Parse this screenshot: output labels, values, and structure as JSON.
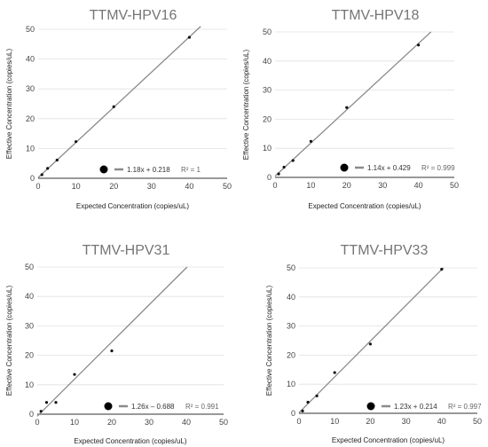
{
  "chart_data": [
    {
      "type": "scatter",
      "title": "TTMV-HPV16",
      "xlabel": "Expected Concentration (copies/uL)",
      "ylabel": "Effective Concentration (copies/uL)",
      "xlim": [
        0,
        50
      ],
      "ylim": [
        0,
        50
      ],
      "xticks": [
        "0",
        "10",
        "20",
        "30",
        "40",
        "50"
      ],
      "yticks": [
        "0",
        "10",
        "20",
        "30",
        "40",
        "50"
      ],
      "x": [
        1,
        2.5,
        5,
        10,
        20,
        40
      ],
      "y": [
        1.2,
        3.3,
        6.1,
        12.3,
        24,
        47.3
      ],
      "trendline": {
        "slope": 1.18,
        "intercept": 0.218,
        "x_end": 43
      },
      "legend": {
        "equation": "1.18x + 0.218",
        "r2": "R² = 1"
      },
      "grid": "horizontal",
      "legend_position": "bottom-right"
    },
    {
      "type": "scatter",
      "title": "TTMV-HPV18",
      "xlabel": "Expected Concentration (copies/uL)",
      "ylabel": "Effective Concentration (copies/uL)",
      "xlim": [
        0,
        50
      ],
      "ylim": [
        0,
        50
      ],
      "xticks": [
        "0",
        "10",
        "20",
        "30",
        "40",
        "50"
      ],
      "yticks": [
        "0",
        "10",
        "20",
        "30",
        "40",
        "50"
      ],
      "x": [
        1,
        2.5,
        5,
        10,
        20,
        40
      ],
      "y": [
        1.2,
        3.5,
        5.8,
        12.4,
        24,
        45.5
      ],
      "trendline": {
        "slope": 1.14,
        "intercept": 0.429,
        "x_end": 43.5
      },
      "legend": {
        "equation": "1.14x + 0.429",
        "r2": "R² = 0.999"
      },
      "grid": "horizontal",
      "legend_position": "bottom-right"
    },
    {
      "type": "scatter",
      "title": "TTMV-HPV31",
      "xlabel": "Expected Concentration (copies/uL)",
      "ylabel": "Effective Concentration (copies/uL)",
      "xlim": [
        0,
        50
      ],
      "ylim": [
        0,
        50
      ],
      "xticks": [
        "0",
        "10",
        "20",
        "30",
        "40",
        "50"
      ],
      "yticks": [
        "0",
        "10",
        "20",
        "30",
        "40",
        "50"
      ],
      "x": [
        1,
        2.5,
        5,
        10,
        20
      ],
      "y": [
        1,
        4,
        4,
        13.5,
        21.5
      ],
      "trendline": {
        "slope": 1.26,
        "intercept": -0.688,
        "x_end": 40.2
      },
      "legend": {
        "equation": "1.26x – 0.688",
        "r2": "R² = 0.991"
      },
      "grid": "horizontal",
      "legend_position": "bottom-right"
    },
    {
      "type": "scatter",
      "title": "TTMV-HPV33",
      "xlabel": "Expected Concentration (copies/uL)",
      "ylabel": "Effective Concentration (copies/uL)",
      "xlim": [
        0,
        50
      ],
      "ylim": [
        0,
        50
      ],
      "xticks": [
        "0",
        "10",
        "20",
        "30",
        "40",
        "50"
      ],
      "yticks": [
        "0",
        "10",
        "20",
        "30",
        "40",
        "50"
      ],
      "x": [
        1,
        2.5,
        5,
        10,
        20,
        40
      ],
      "y": [
        0.8,
        3.8,
        6,
        14,
        23.8,
        49.5
      ],
      "trendline": {
        "slope": 1.23,
        "intercept": 0.214,
        "x_end": 40.5
      },
      "legend": {
        "equation": "1.23x + 0.214",
        "r2": "R² = 0.997"
      },
      "grid": "horizontal",
      "legend_position": "bottom-right"
    }
  ]
}
